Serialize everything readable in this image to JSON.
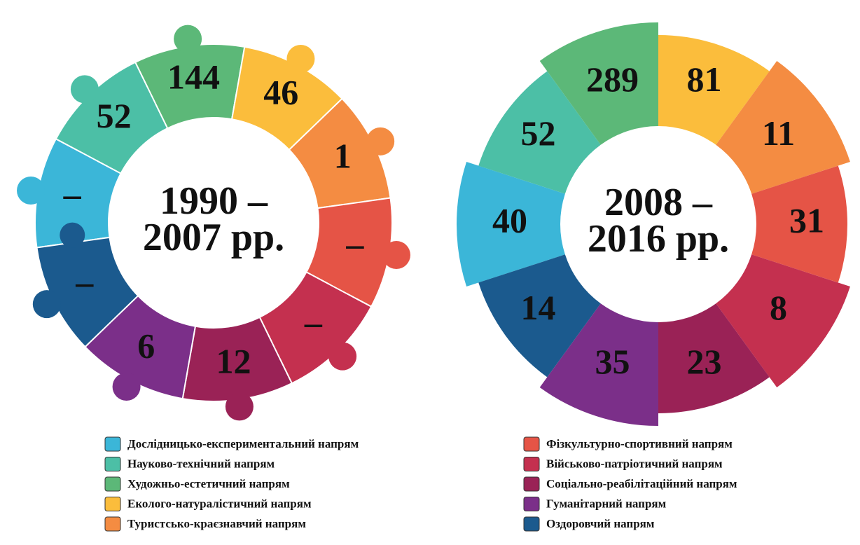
{
  "rings": [
    {
      "title": [
        "1990 –",
        "2007 рр."
      ],
      "labels": [
        "–",
        52,
        144,
        46,
        1,
        "–",
        "–",
        12,
        6,
        "–"
      ]
    },
    {
      "title": [
        "2008 –",
        "2016 рр."
      ],
      "labels": [
        40,
        52,
        289,
        81,
        11,
        31,
        8,
        23,
        35,
        14
      ]
    }
  ],
  "legend": [
    {
      "label": "Дослідницько-експериментальний напрям",
      "color": "#3bb6d8"
    },
    {
      "label": "Науково-технічний напрям",
      "color": "#4cbfa6"
    },
    {
      "label": "Художньо-естетичний напрям",
      "color": "#5cb878"
    },
    {
      "label": "Еколого-натуралістичний напрям",
      "color": "#fbbd3c"
    },
    {
      "label": "Туристсько-краєзнавчий напрям",
      "color": "#f48c42"
    },
    {
      "label": "Фізкультурно-спортивний напрям",
      "color": "#e55446"
    },
    {
      "label": "Військово-патріотичний напрям",
      "color": "#c4304f"
    },
    {
      "label": "Соціально-реабілітаційний напрям",
      "color": "#9a2256"
    },
    {
      "label": "Гуманітарний напрям",
      "color": "#7b2f89"
    },
    {
      "label": "Оздоровчий напрям",
      "color": "#1b5a8e"
    }
  ]
}
